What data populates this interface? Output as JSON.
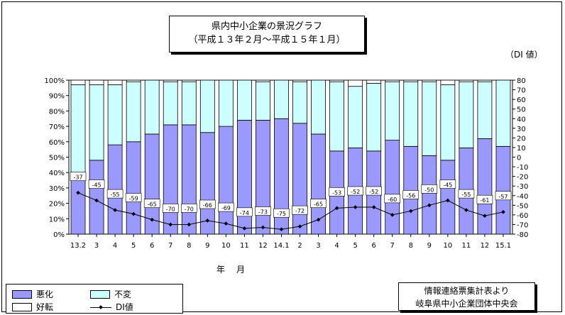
{
  "title": {
    "line1": "県内中小企業の景況グラフ",
    "line2": "（平成１３年２月～平成１５年１月）"
  },
  "unit_label": "（DI 値）",
  "x_axis_title": "年　月",
  "legend": {
    "worse": "悪化",
    "same": "不変",
    "better": "好転",
    "di": "DI値"
  },
  "source": {
    "line1": "情報連絡票集計表より",
    "line2": "岐阜県中小企業団体中央会"
  },
  "colors": {
    "worse": "#9999ff",
    "same": "#ccffff",
    "better": "#ffffff",
    "di": "#000000"
  },
  "chart_data": {
    "type": "bar",
    "stacked": true,
    "categories": [
      "13.2",
      "3",
      "4",
      "5",
      "6",
      "7",
      "8",
      "9",
      "10",
      "11",
      "12",
      "14.1",
      "2",
      "3",
      "4",
      "5",
      "6",
      "7",
      "8",
      "9",
      "10",
      "11",
      "12",
      "15.1"
    ],
    "series": [
      {
        "name": "悪化",
        "values": [
          40,
          48,
          58,
          60,
          65,
          71,
          71,
          66,
          70,
          74,
          74,
          75,
          72,
          65,
          54,
          56,
          54,
          61,
          57,
          51,
          48,
          56,
          62,
          57
        ]
      },
      {
        "name": "不変",
        "values": [
          57,
          49,
          39,
          39,
          35,
          28,
          28,
          34,
          30,
          26,
          25,
          25,
          27,
          35,
          45,
          40,
          44,
          38,
          42,
          48,
          49,
          43,
          37,
          43
        ]
      },
      {
        "name": "好転",
        "values": [
          3,
          3,
          3,
          1,
          0,
          1,
          1,
          0,
          0,
          0,
          1,
          0,
          1,
          0,
          1,
          4,
          2,
          1,
          1,
          1,
          3,
          1,
          1,
          0
        ]
      },
      {
        "name": "DI値",
        "axis": "right",
        "type": "line",
        "values": [
          -37,
          -45,
          -55,
          -59,
          -65,
          -70,
          -70,
          -66,
          -69,
          -74,
          -73,
          -75,
          -72,
          -65,
          -53,
          -52,
          -52,
          -60,
          -56,
          -50,
          -45,
          -55,
          -61,
          -57
        ]
      }
    ],
    "y_left": {
      "ticks": [
        "0%",
        "10%",
        "20%",
        "30%",
        "40%",
        "50%",
        "60%",
        "70%",
        "80%",
        "90%",
        "100%"
      ],
      "range": [
        0,
        100
      ]
    },
    "y_right": {
      "ticks": [
        "80",
        "70",
        "60",
        "50",
        "40",
        "30",
        "20",
        "10",
        "0",
        "-10",
        "-20",
        "-30",
        "-40",
        "-50",
        "-60",
        "-70",
        "-80"
      ],
      "range": [
        -80,
        80
      ]
    }
  }
}
